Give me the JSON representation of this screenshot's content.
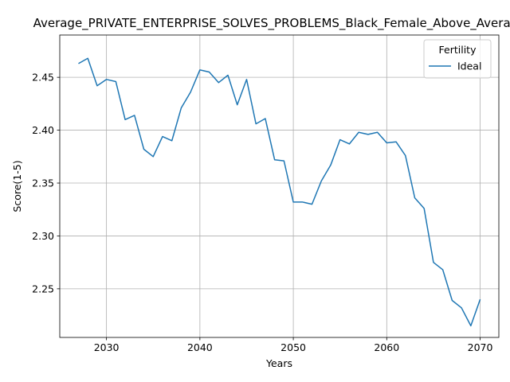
{
  "chart_data": {
    "type": "line",
    "title": "Average_PRIVATE_ENTERPRISE_SOLVES_PROBLEMS_Black_Female_Above_Average",
    "xlabel": "Years",
    "ylabel": "Score(1-5)",
    "xlim": [
      2025,
      2072
    ],
    "ylim": [
      2.204,
      2.49
    ],
    "xticks": [
      2030,
      2040,
      2050,
      2060,
      2070
    ],
    "yticks": [
      2.25,
      2.3,
      2.35,
      2.4,
      2.45
    ],
    "xtick_labels": [
      "2030",
      "2040",
      "2050",
      "2060",
      "2070"
    ],
    "ytick_labels": [
      "2.25",
      "2.30",
      "2.35",
      "2.40",
      "2.45"
    ],
    "grid": true,
    "legend": {
      "title": "Fertility",
      "placement": "top-right"
    },
    "series": [
      {
        "name": "Ideal",
        "color": "#1f77b4",
        "x": [
          2027,
          2028,
          2029,
          2030,
          2031,
          2032,
          2033,
          2034,
          2035,
          2036,
          2037,
          2038,
          2039,
          2040,
          2041,
          2042,
          2043,
          2044,
          2045,
          2046,
          2047,
          2048,
          2049,
          2050,
          2051,
          2052,
          2053,
          2054,
          2055,
          2056,
          2057,
          2058,
          2059,
          2060,
          2061,
          2062,
          2063,
          2064,
          2065,
          2066,
          2067,
          2068,
          2069,
          2070
        ],
        "y": [
          2.463,
          2.468,
          2.442,
          2.448,
          2.446,
          2.41,
          2.414,
          2.382,
          2.375,
          2.394,
          2.39,
          2.421,
          2.436,
          2.457,
          2.455,
          2.445,
          2.452,
          2.424,
          2.448,
          2.406,
          2.411,
          2.372,
          2.371,
          2.332,
          2.332,
          2.33,
          2.352,
          2.367,
          2.391,
          2.387,
          2.398,
          2.396,
          2.398,
          2.388,
          2.389,
          2.376,
          2.336,
          2.326,
          2.275,
          2.268,
          2.239,
          2.232,
          2.215,
          2.24
        ]
      }
    ]
  }
}
